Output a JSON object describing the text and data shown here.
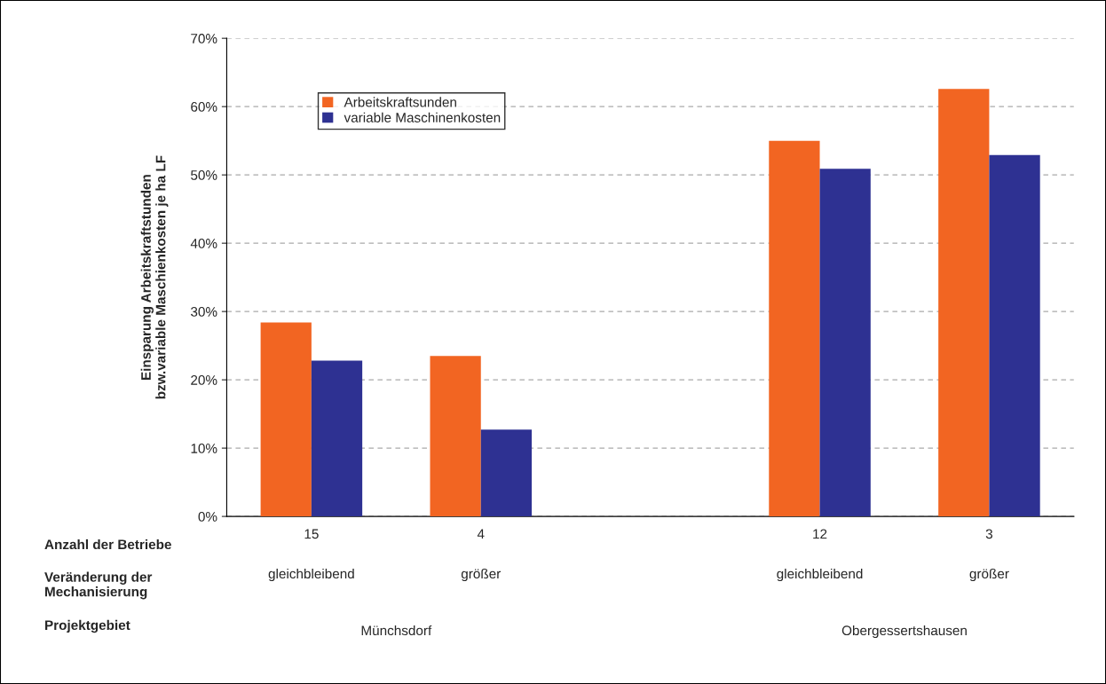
{
  "chart_data": {
    "type": "bar",
    "ylabel": "Einsparung Arbeitskraftstunden\nbzw.variable Maschienkosten je ha LF",
    "categories": [
      "15",
      "4",
      null,
      "12",
      "3"
    ],
    "series": [
      {
        "name": "Arbeitskraftsunden",
        "color": "#f26522",
        "values": [
          28.4,
          23.5,
          null,
          55.0,
          62.6
        ]
      },
      {
        "name": "variable Maschinenkosten",
        "color": "#2e3192",
        "values": [
          22.8,
          12.7,
          null,
          50.9,
          52.9
        ]
      }
    ],
    "ylim": [
      0,
      70
    ],
    "yticks": [
      {
        "value": 0,
        "label": "0%"
      },
      {
        "value": 10,
        "label": "10%"
      },
      {
        "value": 20,
        "label": "20%"
      },
      {
        "value": 30,
        "label": "30%"
      },
      {
        "value": 40,
        "label": "40%"
      },
      {
        "value": 50,
        "label": "50%"
      },
      {
        "value": 60,
        "label": "60%"
      },
      {
        "value": 70,
        "label": "70%"
      }
    ],
    "grid": "y",
    "legend": "top left",
    "annotations": [
      "Anzahl der Betriebe",
      "Veränderung der\nMechanisierung",
      "Projektgebiet",
      "gleichbleibend",
      "größer",
      "gleichbleibend",
      "größer",
      "Münchsdorf",
      "Obergessertshausen"
    ]
  }
}
